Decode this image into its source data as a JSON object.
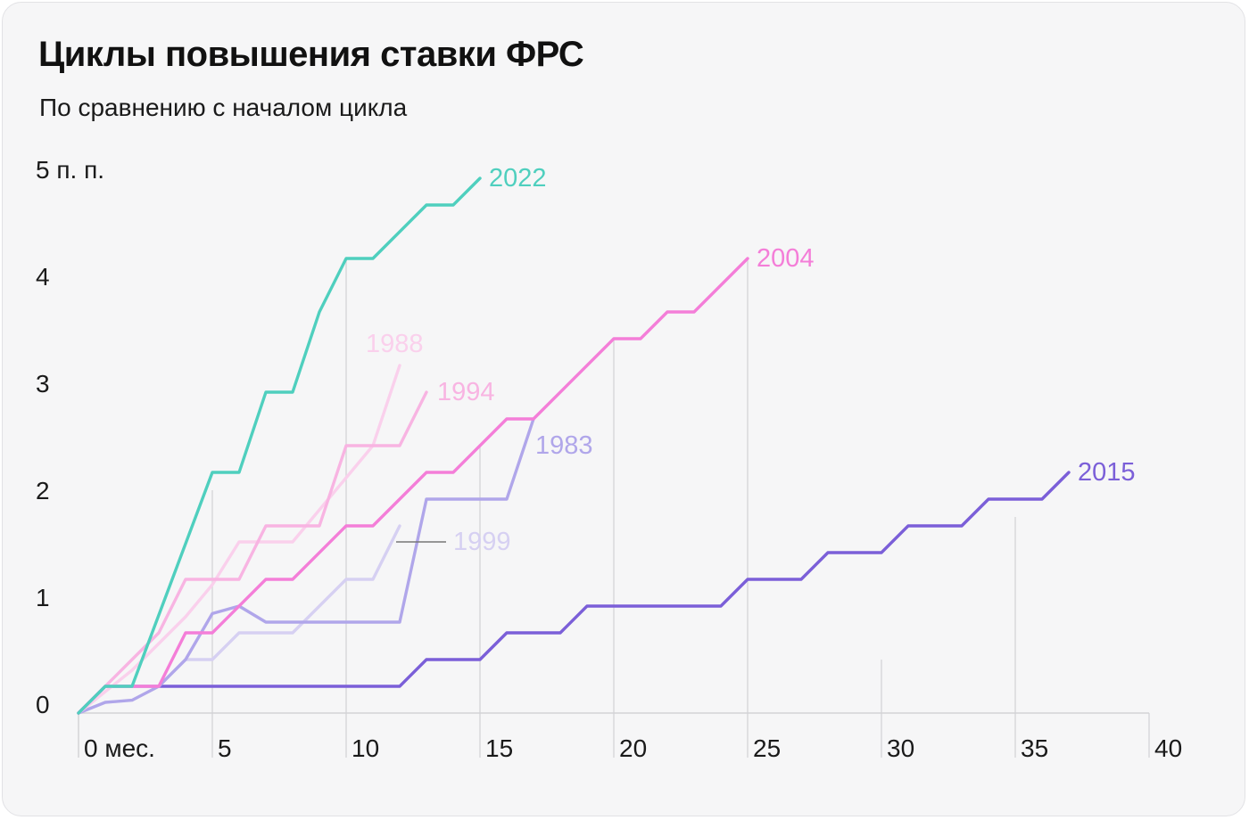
{
  "title": "Циклы повышения ставки ФРС",
  "subtitle": "По сравнению с началом цикла",
  "chart_data": {
    "type": "line",
    "xlim": [
      0,
      40
    ],
    "ylim": [
      0,
      5
    ],
    "grid": "vertical",
    "x_ticks": [
      {
        "value": 0,
        "label": "0 мес."
      },
      {
        "value": 5,
        "label": "5"
      },
      {
        "value": 10,
        "label": "10"
      },
      {
        "value": 15,
        "label": "15"
      },
      {
        "value": 20,
        "label": "20"
      },
      {
        "value": 25,
        "label": "25"
      },
      {
        "value": 30,
        "label": "30"
      },
      {
        "value": 35,
        "label": "35"
      },
      {
        "value": 40,
        "label": "40"
      }
    ],
    "y_ticks": [
      {
        "value": 0,
        "label": "0"
      },
      {
        "value": 1,
        "label": "1"
      },
      {
        "value": 2,
        "label": "2"
      },
      {
        "value": 3,
        "label": "3"
      },
      {
        "value": 4,
        "label": "4"
      },
      {
        "value": 5,
        "label": "5 п. п."
      }
    ],
    "series": [
      {
        "name": "2015",
        "color": "#7b5fd8",
        "points": [
          [
            0,
            0
          ],
          [
            1,
            0.25
          ],
          [
            12,
            0.25
          ],
          [
            13,
            0.5
          ],
          [
            15,
            0.5
          ],
          [
            16,
            0.75
          ],
          [
            18,
            0.75
          ],
          [
            19,
            1
          ],
          [
            24,
            1
          ],
          [
            25,
            1.25
          ],
          [
            27,
            1.25
          ],
          [
            28,
            1.5
          ],
          [
            30,
            1.5
          ],
          [
            31,
            1.75
          ],
          [
            33,
            1.75
          ],
          [
            34,
            2
          ],
          [
            36,
            2
          ],
          [
            37,
            2.25
          ]
        ]
      },
      {
        "name": "1999",
        "color": "#d6d0f2",
        "points": [
          [
            0,
            0
          ],
          [
            1,
            0.25
          ],
          [
            3,
            0.25
          ],
          [
            4,
            0.5
          ],
          [
            5,
            0.5
          ],
          [
            6,
            0.75
          ],
          [
            8,
            0.75
          ],
          [
            10,
            1.25
          ],
          [
            11,
            1.25
          ],
          [
            12,
            1.75
          ]
        ]
      },
      {
        "name": "1983",
        "color": "#b0a6ea",
        "points": [
          [
            0,
            0
          ],
          [
            1,
            0.1
          ],
          [
            2,
            0.12
          ],
          [
            3,
            0.25
          ],
          [
            4,
            0.5
          ],
          [
            5,
            0.93
          ],
          [
            6,
            1
          ],
          [
            7,
            0.85
          ],
          [
            12,
            0.85
          ],
          [
            13,
            2
          ],
          [
            16,
            2
          ],
          [
            17,
            2.75
          ]
        ]
      },
      {
        "name": "1988",
        "color": "#fad0ec",
        "points": [
          [
            0,
            0
          ],
          [
            2,
            0.4
          ],
          [
            4,
            0.9
          ],
          [
            5,
            1.2
          ],
          [
            6,
            1.6
          ],
          [
            8,
            1.6
          ],
          [
            10,
            2.2
          ],
          [
            11,
            2.5
          ],
          [
            12,
            3.25
          ]
        ]
      },
      {
        "name": "1994",
        "color": "#f8b4e2",
        "points": [
          [
            0,
            0
          ],
          [
            1,
            0.25
          ],
          [
            2,
            0.5
          ],
          [
            3,
            0.75
          ],
          [
            4,
            1.25
          ],
          [
            6,
            1.25
          ],
          [
            7,
            1.75
          ],
          [
            9,
            1.75
          ],
          [
            10,
            2.5
          ],
          [
            12,
            2.5
          ],
          [
            13,
            3
          ]
        ]
      },
      {
        "name": "2004",
        "color": "#f47ed8",
        "points": [
          [
            0,
            0
          ],
          [
            1,
            0.25
          ],
          [
            3,
            0.25
          ],
          [
            4,
            0.75
          ],
          [
            5,
            0.75
          ],
          [
            7,
            1.25
          ],
          [
            8,
            1.25
          ],
          [
            10,
            1.75
          ],
          [
            11,
            1.75
          ],
          [
            13,
            2.25
          ],
          [
            14,
            2.25
          ],
          [
            16,
            2.75
          ],
          [
            17,
            2.75
          ],
          [
            20,
            3.5
          ],
          [
            21,
            3.5
          ],
          [
            22,
            3.75
          ],
          [
            23,
            3.75
          ],
          [
            25,
            4.25
          ]
        ]
      },
      {
        "name": "2022",
        "color": "#4fcfbe",
        "points": [
          [
            0,
            0
          ],
          [
            1,
            0.25
          ],
          [
            2,
            0.25
          ],
          [
            5,
            2.25
          ],
          [
            6,
            2.25
          ],
          [
            7,
            3
          ],
          [
            8,
            3
          ],
          [
            9,
            3.75
          ],
          [
            10,
            4.25
          ],
          [
            11,
            4.25
          ],
          [
            13,
            4.75
          ],
          [
            14,
            4.75
          ],
          [
            15,
            5
          ]
        ]
      }
    ]
  }
}
